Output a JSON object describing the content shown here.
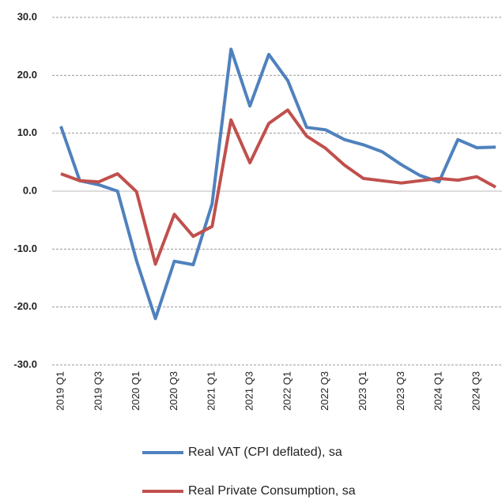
{
  "chart_data": {
    "type": "line",
    "categories": [
      "2019 Q1",
      null,
      "2019 Q3",
      null,
      "2020 Q1",
      null,
      "2020 Q3",
      null,
      "2021 Q1",
      null,
      "2021 Q3",
      null,
      "2022 Q1",
      null,
      "2022 Q3",
      null,
      "2023 Q1",
      null,
      "2023 Q3",
      null,
      "2024 Q1",
      null,
      "2024 Q3",
      null
    ],
    "series": [
      {
        "name": "Real VAT (CPI deflated), sa",
        "color": "#4f81bd",
        "values": [
          11.2,
          1.8,
          1.1,
          0,
          -12,
          -22,
          -12.1,
          -12.7,
          -2.2,
          24.5,
          14.7,
          23.6,
          19.1,
          11.0,
          10.6,
          8.9,
          8.0,
          6.8,
          4.6,
          2.7,
          1.6,
          8.9,
          7.5,
          7.6
        ]
      },
      {
        "name": "Real Private Consumption, sa",
        "color": "#c0504d",
        "values": [
          3.0,
          1.8,
          1.6,
          3.0,
          -0.1,
          -12.6,
          -4.0,
          -7.8,
          -6.1,
          12.3,
          4.9,
          11.7,
          14.0,
          9.5,
          7.4,
          4.5,
          2.2,
          1.8,
          1.4,
          1.8,
          2.2,
          1.9,
          2.5,
          0.7
        ]
      }
    ],
    "ylim": [
      -30,
      30
    ],
    "yticks": [
      {
        "value": -30,
        "label": "-30.0"
      },
      {
        "value": -20,
        "label": "-20.0"
      },
      {
        "value": -10,
        "label": "-10.0"
      },
      {
        "value": 0,
        "label": "0.0"
      },
      {
        "value": 10,
        "label": "10.0"
      },
      {
        "value": 20,
        "label": "20.0"
      },
      {
        "value": 30,
        "label": "30.0"
      }
    ],
    "grid": true,
    "legend": "bottom"
  }
}
